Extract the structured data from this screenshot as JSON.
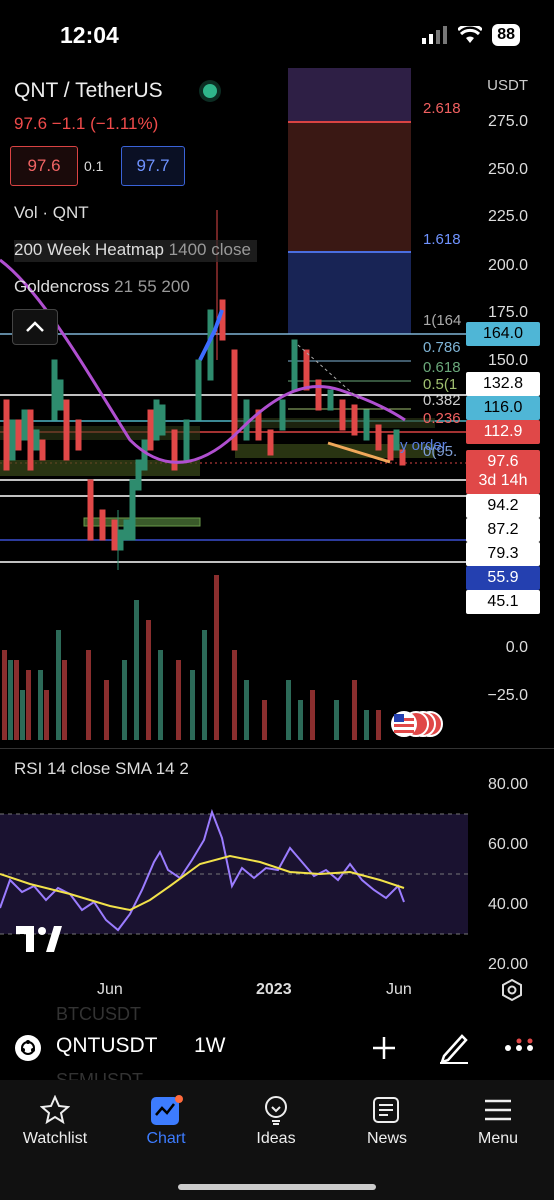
{
  "status_bar": {
    "time": "12:04",
    "battery": "88"
  },
  "header": {
    "symbol": "QNT / TetherUS",
    "price_change": "97.6  −1.1 (−1.11%)",
    "bid": "97.6",
    "spread": "0.1",
    "ask": "97.7"
  },
  "indicators": {
    "vol": "Vol · QNT",
    "heatmap": "200 Week Heatmap",
    "heatmap_params": "1400 close",
    "goldencross": "Goldencross",
    "goldencross_params": "21 55 200"
  },
  "price_axis": {
    "unit": "USDT",
    "labels": [
      "275.0",
      "250.0",
      "225.0",
      "200.0",
      "175.0",
      "150.0",
      "0.0",
      "−25.0"
    ]
  },
  "fib_levels": {
    "l2618": "2.618",
    "l1618": "1.618",
    "l1": "1(164",
    "l0786": "0.786",
    "l0618": "0.618",
    "l05": "0.5(1",
    "l0382": "0.382",
    "l0236": "0.236",
    "l0": "0(95.",
    "order": "y order"
  },
  "price_tags": {
    "t164": "164.0",
    "t1328": "132.8",
    "t116": "116.0",
    "t1129": "112.9",
    "current": "97.6",
    "countdown": "3d 14h",
    "t942": "94.2",
    "t872": "87.2",
    "t793": "79.3",
    "t559": "55.9",
    "t451": "45.1"
  },
  "rsi": {
    "title": "RSI 14 close SMA 14 2",
    "labels": [
      "80.00",
      "60.00",
      "40.00",
      "20.00"
    ]
  },
  "time_axis": {
    "jun1": "Jun",
    "year": "2023",
    "jun2": "Jun"
  },
  "symbol_bar": {
    "symbol": "QNTUSDT",
    "interval": "1W",
    "ghost_top": "BTCUSDT",
    "ghost_bottom": "SFMUSDT"
  },
  "nav": {
    "watchlist": "Watchlist",
    "chart": "Chart",
    "ideas": "Ideas",
    "news": "News",
    "menu": "Menu"
  },
  "colors": {
    "up": "#2e8c6e",
    "down": "#e04848",
    "accent": "#3d7cff",
    "rsi_line": "#9b7cff",
    "rsi_sma": "#f2e24a"
  }
}
